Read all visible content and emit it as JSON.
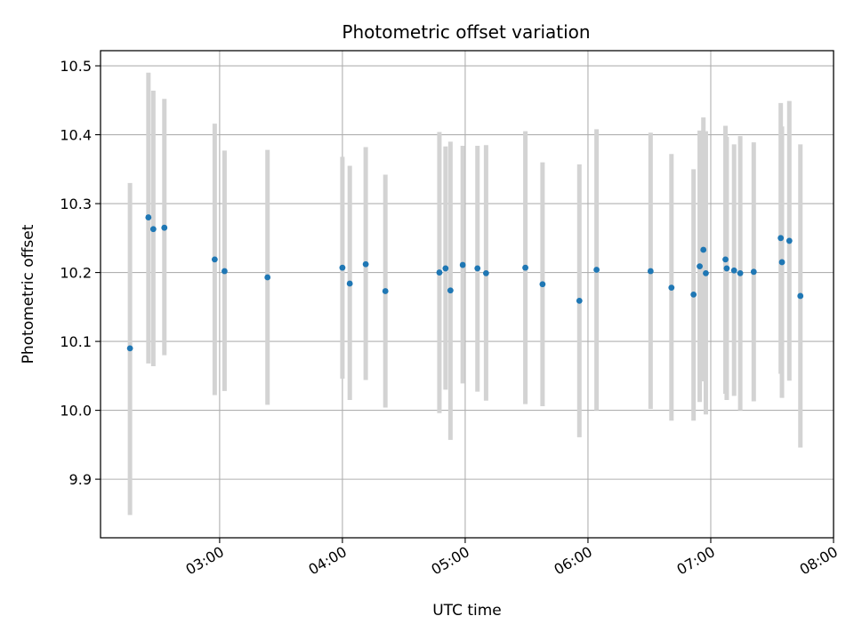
{
  "chart_data": {
    "type": "scatter",
    "title": "Photometric offset variation",
    "xlabel": "UTC time",
    "ylabel": "Photometric offset",
    "x_unit": "hours UTC",
    "xlim": [
      2.03,
      8.0
    ],
    "ylim": [
      9.815,
      10.522
    ],
    "x_ticks": [
      {
        "value": 3,
        "label": "03:00"
      },
      {
        "value": 4,
        "label": "04:00"
      },
      {
        "value": 5,
        "label": "05:00"
      },
      {
        "value": 6,
        "label": "06:00"
      },
      {
        "value": 7,
        "label": "07:00"
      },
      {
        "value": 8,
        "label": "08:00"
      }
    ],
    "y_ticks": [
      {
        "value": 9.9,
        "label": "9.9"
      },
      {
        "value": 10.0,
        "label": "10.0"
      },
      {
        "value": 10.1,
        "label": "10.1"
      },
      {
        "value": 10.2,
        "label": "10.2"
      },
      {
        "value": 10.3,
        "label": "10.3"
      },
      {
        "value": 10.4,
        "label": "10.4"
      },
      {
        "value": 10.5,
        "label": "10.5"
      }
    ],
    "grid": true,
    "colors": {
      "point": "#1f77b4",
      "errorbar": "#d3d3d3",
      "grid": "#b0b0b0"
    },
    "series": [
      {
        "points": [
          {
            "x": 2.27,
            "y": 10.09,
            "lo": 9.848,
            "hi": 10.33
          },
          {
            "x": 2.42,
            "y": 10.28,
            "lo": 10.068,
            "hi": 10.49
          },
          {
            "x": 2.46,
            "y": 10.263,
            "lo": 10.064,
            "hi": 10.464
          },
          {
            "x": 2.55,
            "y": 10.265,
            "lo": 10.08,
            "hi": 10.452
          },
          {
            "x": 2.96,
            "y": 10.219,
            "lo": 10.022,
            "hi": 10.416
          },
          {
            "x": 3.04,
            "y": 10.202,
            "lo": 10.028,
            "hi": 10.377
          },
          {
            "x": 3.39,
            "y": 10.193,
            "lo": 10.008,
            "hi": 10.378
          },
          {
            "x": 4.0,
            "y": 10.207,
            "lo": 10.046,
            "hi": 10.368
          },
          {
            "x": 4.06,
            "y": 10.184,
            "lo": 10.015,
            "hi": 10.355
          },
          {
            "x": 4.19,
            "y": 10.212,
            "lo": 10.044,
            "hi": 10.382
          },
          {
            "x": 4.35,
            "y": 10.173,
            "lo": 10.004,
            "hi": 10.342
          },
          {
            "x": 4.79,
            "y": 10.2,
            "lo": 9.996,
            "hi": 10.404
          },
          {
            "x": 4.84,
            "y": 10.206,
            "lo": 10.03,
            "hi": 10.383
          },
          {
            "x": 4.88,
            "y": 10.174,
            "lo": 9.957,
            "hi": 10.39
          },
          {
            "x": 4.98,
            "y": 10.211,
            "lo": 10.039,
            "hi": 10.384
          },
          {
            "x": 5.1,
            "y": 10.206,
            "lo": 10.027,
            "hi": 10.384
          },
          {
            "x": 5.17,
            "y": 10.199,
            "lo": 10.014,
            "hi": 10.385
          },
          {
            "x": 5.49,
            "y": 10.207,
            "lo": 10.009,
            "hi": 10.405
          },
          {
            "x": 5.63,
            "y": 10.183,
            "lo": 10.006,
            "hi": 10.36
          },
          {
            "x": 5.93,
            "y": 10.159,
            "lo": 9.961,
            "hi": 10.357
          },
          {
            "x": 6.07,
            "y": 10.204,
            "lo": 10.0,
            "hi": 10.408
          },
          {
            "x": 6.51,
            "y": 10.202,
            "lo": 10.002,
            "hi": 10.403
          },
          {
            "x": 6.68,
            "y": 10.178,
            "lo": 9.985,
            "hi": 10.372
          },
          {
            "x": 6.86,
            "y": 10.168,
            "lo": 9.985,
            "hi": 10.35
          },
          {
            "x": 6.91,
            "y": 10.209,
            "lo": 10.012,
            "hi": 10.406
          },
          {
            "x": 6.94,
            "y": 10.233,
            "lo": 10.042,
            "hi": 10.425
          },
          {
            "x": 6.96,
            "y": 10.199,
            "lo": 9.994,
            "hi": 10.405
          },
          {
            "x": 7.12,
            "y": 10.219,
            "lo": 10.024,
            "hi": 10.413
          },
          {
            "x": 7.13,
            "y": 10.206,
            "lo": 10.015,
            "hi": 10.397
          },
          {
            "x": 7.19,
            "y": 10.203,
            "lo": 10.021,
            "hi": 10.386
          },
          {
            "x": 7.24,
            "y": 10.199,
            "lo": 10.0,
            "hi": 10.398
          },
          {
            "x": 7.35,
            "y": 10.201,
            "lo": 10.013,
            "hi": 10.389
          },
          {
            "x": 7.57,
            "y": 10.25,
            "lo": 10.053,
            "hi": 10.446
          },
          {
            "x": 7.58,
            "y": 10.215,
            "lo": 10.018,
            "hi": 10.412
          },
          {
            "x": 7.64,
            "y": 10.246,
            "lo": 10.043,
            "hi": 10.449
          },
          {
            "x": 7.73,
            "y": 10.166,
            "lo": 9.946,
            "hi": 10.386
          }
        ]
      }
    ]
  }
}
